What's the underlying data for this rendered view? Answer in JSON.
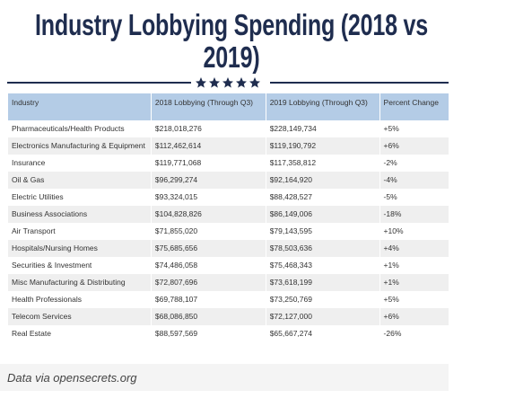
{
  "header": {
    "title": "Industry Lobbying Spending (2018 vs 2019)"
  },
  "table": {
    "columns": [
      "Industry",
      "2018 Lobbying (Through Q3)",
      "2019 Lobbying (Through Q3)",
      "Percent Change"
    ],
    "rows": [
      [
        "Pharmaceuticals/Health Products",
        "$218,018,276",
        "$228,149,734",
        "+5%"
      ],
      [
        "Electronics Manufacturing & Equipment",
        "$112,462,614",
        "$119,190,792",
        "+6%"
      ],
      [
        "Insurance",
        "$119,771,068",
        "$117,358,812",
        "-2%"
      ],
      [
        "Oil & Gas",
        "$96,299,274",
        "$92,164,920",
        "-4%"
      ],
      [
        "Electric Utilities",
        "$93,324,015",
        "$88,428,527",
        "-5%"
      ],
      [
        "Business Associations",
        "$104,828,826",
        "$86,149,006",
        "-18%"
      ],
      [
        "Air Transport",
        "$71,855,020",
        "$79,143,595",
        "+10%"
      ],
      [
        "Hospitals/Nursing Homes",
        "$75,685,656",
        "$78,503,636",
        "+4%"
      ],
      [
        "Securities & Investment",
        "$74,486,058",
        "$75,468,343",
        "+1%"
      ],
      [
        "Misc Manufacturing & Distributing",
        "$72,807,696",
        "$73,618,199",
        "+1%"
      ],
      [
        "Health Professionals",
        "$69,788,107",
        "$73,250,769",
        "+5%"
      ],
      [
        "Telecom Services",
        "$68,086,850",
        "$72,127,000",
        "+6%"
      ],
      [
        "Real Estate",
        "$88,597,569",
        "$65,667,274",
        "-26%"
      ]
    ]
  },
  "footer": {
    "source": "Data via opensecrets.org"
  }
}
